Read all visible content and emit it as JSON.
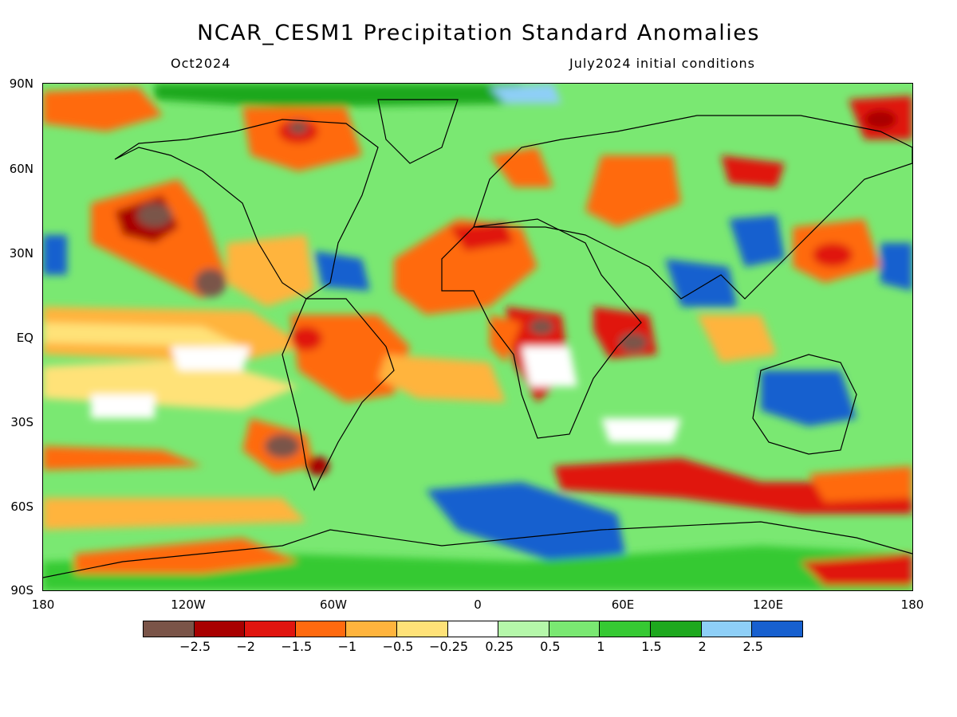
{
  "header": {
    "title": "NCAR_CESM1 Precipitation Standard Anomalies",
    "valid_month": "Oct2024",
    "init_conditions": "July2024 initial conditions"
  },
  "map": {
    "projection": "cylindrical equidistant",
    "lat_range": [
      -90,
      90
    ],
    "lon_range": [
      -180,
      180
    ],
    "lat_ticks": [
      "90N",
      "60N",
      "30N",
      "EQ",
      "30S",
      "60S",
      "90S"
    ],
    "lon_ticks": [
      "180",
      "120W",
      "60W",
      "0",
      "60E",
      "120E",
      "180"
    ],
    "field": "precipitation standard anomaly",
    "background_color": "#ffffff",
    "coastline_color": "#000000"
  },
  "colorbar": {
    "colors": [
      "#7a5448",
      "#a80000",
      "#e0150f",
      "#ff6a0f",
      "#ffb43d",
      "#ffe278",
      "#ffffff",
      "#b5f7aa",
      "#7ae872",
      "#36c933",
      "#1ea81e",
      "#8ecff7",
      "#1760cf"
    ],
    "labels": [
      "-2.5",
      "-2",
      "-1.5",
      "-1",
      "-0.5",
      "-0.25",
      "0.25",
      "0.5",
      "1",
      "1.5",
      "2",
      "2.5"
    ]
  }
}
